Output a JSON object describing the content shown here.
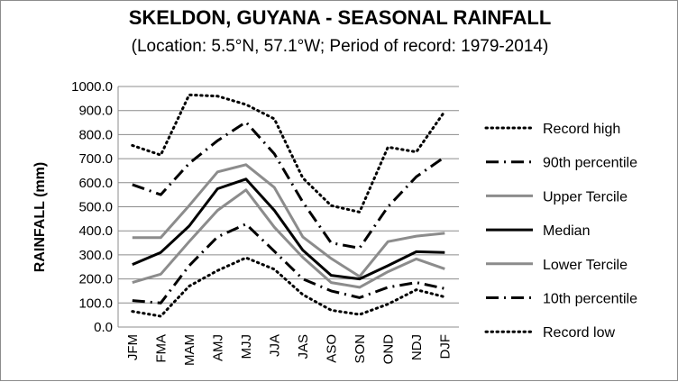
{
  "chart_data": {
    "type": "line",
    "title": "SKELDON, GUYANA - SEASONAL RAINFALL",
    "subtitle": "(Location: 5.5°N, 57.1°W; Period of record: 1979-2014)",
    "ylabel": "RAINFALL (mm)",
    "xlabel": "",
    "ylim": [
      0,
      1000
    ],
    "y_ticks": [
      "0.0",
      "100.0",
      "200.0",
      "300.0",
      "400.0",
      "500.0",
      "600.0",
      "700.0",
      "800.0",
      "900.0",
      "1000.0"
    ],
    "categories": [
      "JFM",
      "FMA",
      "MAM",
      "AMJ",
      "MJJ",
      "JJA",
      "JAS",
      "ASO",
      "SON",
      "OND",
      "NDJ",
      "DJF"
    ],
    "grid": true,
    "legend_position": "right",
    "series": [
      {
        "name": "Record high",
        "style": "dotted",
        "color": "#000000",
        "values": [
          755,
          715,
          965,
          960,
          925,
          865,
          620,
          505,
          478,
          748,
          728,
          897
        ]
      },
      {
        "name": "90th percentile",
        "style": "dashdot",
        "color": "#000000",
        "values": [
          592,
          550,
          680,
          775,
          852,
          720,
          520,
          350,
          328,
          500,
          625,
          707
        ]
      },
      {
        "name": "Upper Tercile",
        "style": "solid",
        "color": "#8c8c8c",
        "values": [
          372,
          372,
          505,
          645,
          675,
          580,
          375,
          285,
          210,
          355,
          378,
          390
        ]
      },
      {
        "name": "Median",
        "style": "solid",
        "color": "#000000",
        "values": [
          260,
          310,
          420,
          575,
          615,
          485,
          320,
          215,
          200,
          255,
          313,
          310
        ]
      },
      {
        "name": "Lower Tercile",
        "style": "solid",
        "color": "#8c8c8c",
        "values": [
          185,
          220,
          355,
          485,
          570,
          415,
          290,
          185,
          165,
          230,
          283,
          242
        ]
      },
      {
        "name": "10th percentile",
        "style": "dashdot",
        "color": "#000000",
        "values": [
          110,
          100,
          255,
          375,
          428,
          315,
          200,
          150,
          122,
          165,
          185,
          160
        ]
      },
      {
        "name": "Record low",
        "style": "dotted",
        "color": "#000000",
        "values": [
          65,
          45,
          170,
          235,
          288,
          240,
          135,
          70,
          52,
          95,
          155,
          125
        ]
      }
    ]
  }
}
